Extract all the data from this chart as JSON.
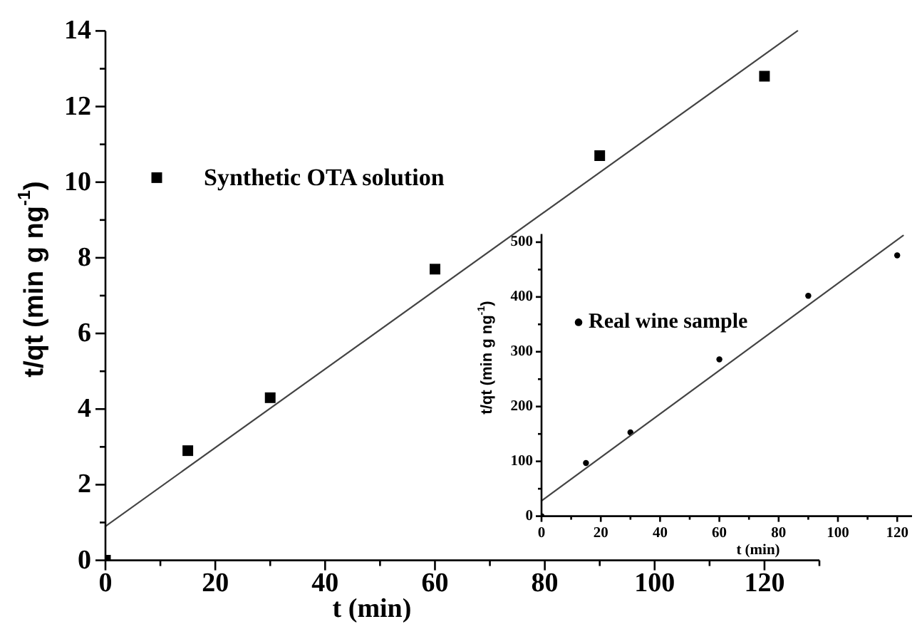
{
  "chart_data": [
    {
      "type": "scatter",
      "xlabel": "t (min)",
      "ylabel": "t/qt (min g ng$^{-1}$)",
      "xlim": [
        0,
        130
      ],
      "ylim": [
        0,
        14
      ],
      "xticks": [
        0,
        {
          "value": 10,
          "label": null
        },
        20,
        {
          "value": 30,
          "label": null
        },
        40,
        {
          "value": 50,
          "label": null
        },
        60,
        {
          "value": 70,
          "label": null
        },
        80,
        {
          "value": 90,
          "label": null
        },
        100,
        {
          "value": 110,
          "label": null
        },
        120,
        {
          "value": 130,
          "label": null
        }
      ],
      "yticks": [
        0,
        {
          "value": 1,
          "label": null
        },
        2,
        {
          "value": 3,
          "label": null
        },
        4,
        {
          "value": 5,
          "label": null
        },
        6,
        {
          "value": 7,
          "label": null
        },
        8,
        {
          "value": 9,
          "label": null
        },
        10,
        {
          "value": 11,
          "label": null
        },
        12,
        {
          "value": 13,
          "label": null
        },
        14
      ],
      "legend": "top left",
      "series": [
        {
          "name": "Synthetic OTA solution",
          "color": "#000000",
          "marker": "square",
          "x": [
            0,
            15,
            30,
            60,
            90,
            120
          ],
          "values": [
            0,
            2.9,
            4.3,
            7.7,
            10.7,
            12.8
          ]
        },
        {
          "type": "line",
          "color": "#444444",
          "marker": "none",
          "x": [
            0,
            126
          ],
          "values": [
            0.9,
            14.0
          ]
        }
      ]
    },
    {
      "type": "scatter",
      "xlabel": "t (min)",
      "ylabel": "t/qt (min g ng$^{-1}$)",
      "xlim": [
        0,
        125
      ],
      "ylim": [
        0,
        515
      ],
      "xticks": [
        0,
        {
          "value": 10,
          "label": null
        },
        20,
        {
          "value": 30,
          "label": null
        },
        40,
        {
          "value": 50,
          "label": null
        },
        60,
        {
          "value": 70,
          "label": null
        },
        80,
        {
          "value": 90,
          "label": null
        },
        100,
        {
          "value": 110,
          "label": null
        },
        120
      ],
      "yticks": [
        0,
        {
          "value": 50,
          "label": null
        },
        100,
        {
          "value": 150,
          "label": null
        },
        200,
        {
          "value": 250,
          "label": null
        },
        300,
        {
          "value": 350,
          "label": null
        },
        400,
        {
          "value": 450,
          "label": null
        },
        500
      ],
      "legend": "top left",
      "series": [
        {
          "name": "Real wine sample",
          "color": "#000000",
          "marker": "circle",
          "x": [
            0,
            15,
            30,
            60,
            90,
            120
          ],
          "values": [
            0,
            97,
            153,
            286,
            402,
            476
          ]
        },
        {
          "type": "line",
          "color": "#444444",
          "marker": "none",
          "x": [
            0,
            122
          ],
          "values": [
            28,
            512
          ]
        }
      ]
    }
  ]
}
